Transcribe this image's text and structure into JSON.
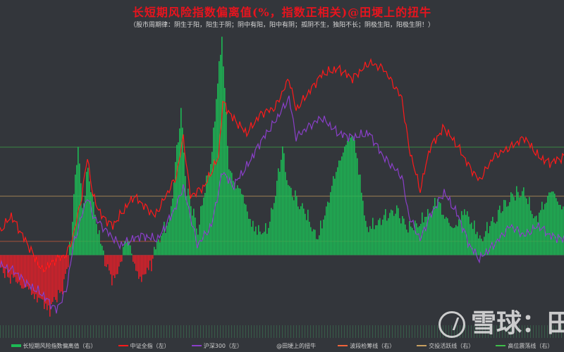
{
  "title": "长短期风险指数偏离值(%，指数正相关)@田埂上的扭牛",
  "subtitle": "（股市周期律：阴生于阳，阳生于阴；阴中有阳，阳中有阴；孤阴不生，独阳不长；阴极生阳，阳极生阴！）",
  "watermark": "雪球：田",
  "colors": {
    "background": "#33363b",
    "title": "#e8141e",
    "bars": "#1db954",
    "csi_all": "#ff1a1a",
    "hs300": "#8a3fc9",
    "band_line": "#f2643a",
    "active_line": "#c8a060",
    "high_line": "#3fbf4a"
  },
  "legend": [
    {
      "label": "长短期风险指数偏离值（右）",
      "color": "#1db954",
      "kind": "bar"
    },
    {
      "label": "中证全指（左）",
      "color": "#ff1a1a",
      "kind": "line"
    },
    {
      "label": "沪深300（左）",
      "color": "#8a3fc9",
      "kind": "line"
    },
    {
      "label": "@田埂上的扭牛",
      "color": "#33363b",
      "kind": "line"
    },
    {
      "label": "波段检筹线（右）",
      "color": "#f2643a",
      "kind": "line"
    },
    {
      "label": "交投活跃线（右）",
      "color": "#c8a060",
      "kind": "line"
    },
    {
      "label": "高位震荡线（右）",
      "color": "#3fbf4a",
      "kind": "line"
    }
  ],
  "chart_data": {
    "type": "bar+line",
    "x_points": 400,
    "right_axis_ref_lines": [
      {
        "name": "高位震荡线",
        "value": 0.55
      },
      {
        "name": "交投活跃线",
        "value": 0.3
      },
      {
        "name": "波段检筹线",
        "value": 0.07
      }
    ],
    "right_axis_range": [
      -0.35,
      1.12
    ],
    "bars": {
      "name": "长短期风险指数偏离值",
      "anchors": [
        [
          0,
          -0.05
        ],
        [
          20,
          -0.15
        ],
        [
          35,
          -0.25
        ],
        [
          45,
          -0.12
        ],
        [
          50,
          0.05
        ],
        [
          55,
          0.55
        ],
        [
          58,
          0.2
        ],
        [
          62,
          0.4
        ],
        [
          70,
          0.05
        ],
        [
          80,
          -0.1
        ],
        [
          90,
          0.05
        ],
        [
          100,
          -0.1
        ],
        [
          110,
          0.02
        ],
        [
          120,
          0.15
        ],
        [
          128,
          0.7
        ],
        [
          132,
          0.3
        ],
        [
          140,
          0.1
        ],
        [
          150,
          0.5
        ],
        [
          157,
          1.1
        ],
        [
          162,
          0.4
        ],
        [
          170,
          0.3
        ],
        [
          180,
          0.1
        ],
        [
          190,
          0.1
        ],
        [
          200,
          0.5
        ],
        [
          205,
          0.3
        ],
        [
          215,
          0.2
        ],
        [
          225,
          0.05
        ],
        [
          240,
          0.45
        ],
        [
          250,
          0.6
        ],
        [
          260,
          0.1
        ],
        [
          270,
          0.15
        ],
        [
          280,
          0.2
        ],
        [
          290,
          0.1
        ],
        [
          300,
          0.15
        ],
        [
          310,
          0.25
        ],
        [
          320,
          0.1
        ],
        [
          330,
          0.2
        ],
        [
          340,
          0.05
        ],
        [
          350,
          0.15
        ],
        [
          360,
          0.25
        ],
        [
          370,
          0.3
        ],
        [
          380,
          0.15
        ],
        [
          390,
          0.3
        ],
        [
          400,
          0.2
        ]
      ]
    },
    "series": [
      {
        "name": "中证全指",
        "anchors": [
          [
            0,
            0.12
          ],
          [
            8,
            0.2
          ],
          [
            20,
            0.05
          ],
          [
            30,
            -0.08
          ],
          [
            40,
            -0.02
          ],
          [
            47,
            0.0
          ],
          [
            52,
            0.1
          ],
          [
            58,
            0.3
          ],
          [
            62,
            0.5
          ],
          [
            66,
            0.3
          ],
          [
            72,
            0.2
          ],
          [
            80,
            0.15
          ],
          [
            95,
            0.3
          ],
          [
            110,
            0.2
          ],
          [
            125,
            0.4
          ],
          [
            130,
            0.6
          ],
          [
            135,
            0.3
          ],
          [
            145,
            0.35
          ],
          [
            155,
            0.5
          ],
          [
            158,
            0.78
          ],
          [
            165,
            0.7
          ],
          [
            175,
            0.62
          ],
          [
            185,
            0.72
          ],
          [
            195,
            0.75
          ],
          [
            205,
            0.9
          ],
          [
            210,
            0.74
          ],
          [
            218,
            0.82
          ],
          [
            228,
            0.92
          ],
          [
            240,
            0.95
          ],
          [
            250,
            0.9
          ],
          [
            262,
            0.98
          ],
          [
            272,
            0.95
          ],
          [
            285,
            0.8
          ],
          [
            290,
            0.55
          ],
          [
            298,
            0.33
          ],
          [
            305,
            0.55
          ],
          [
            315,
            0.65
          ],
          [
            325,
            0.55
          ],
          [
            333,
            0.45
          ],
          [
            340,
            0.38
          ],
          [
            350,
            0.5
          ],
          [
            362,
            0.55
          ],
          [
            372,
            0.6
          ],
          [
            382,
            0.5
          ],
          [
            390,
            0.47
          ],
          [
            400,
            0.5
          ]
        ]
      },
      {
        "name": "沪深300",
        "anchors": [
          [
            0,
            -0.05
          ],
          [
            10,
            -0.08
          ],
          [
            20,
            -0.15
          ],
          [
            30,
            -0.2
          ],
          [
            40,
            -0.28
          ],
          [
            47,
            -0.18
          ],
          [
            52,
            0.05
          ],
          [
            58,
            0.2
          ],
          [
            62,
            0.3
          ],
          [
            66,
            0.2
          ],
          [
            72,
            0.15
          ],
          [
            85,
            0.05
          ],
          [
            100,
            0.1
          ],
          [
            112,
            0.08
          ],
          [
            125,
            0.25
          ],
          [
            130,
            0.35
          ],
          [
            140,
            0.05
          ],
          [
            150,
            0.15
          ],
          [
            158,
            0.43
          ],
          [
            165,
            0.35
          ],
          [
            175,
            0.45
          ],
          [
            185,
            0.58
          ],
          [
            195,
            0.68
          ],
          [
            205,
            0.8
          ],
          [
            210,
            0.6
          ],
          [
            218,
            0.65
          ],
          [
            228,
            0.7
          ],
          [
            240,
            0.62
          ],
          [
            250,
            0.6
          ],
          [
            262,
            0.62
          ],
          [
            272,
            0.5
          ],
          [
            285,
            0.4
          ],
          [
            290,
            0.2
          ],
          [
            298,
            0.08
          ],
          [
            305,
            0.2
          ],
          [
            315,
            0.32
          ],
          [
            325,
            0.2
          ],
          [
            333,
            0.05
          ],
          [
            340,
            -0.02
          ],
          [
            350,
            0.05
          ],
          [
            362,
            0.15
          ],
          [
            372,
            0.1
          ],
          [
            382,
            0.15
          ],
          [
            390,
            0.1
          ],
          [
            400,
            0.08
          ]
        ]
      }
    ]
  }
}
